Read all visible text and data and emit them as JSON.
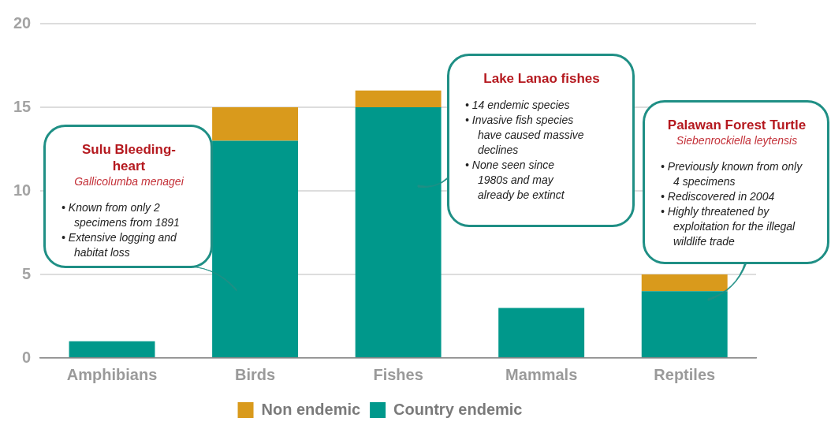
{
  "chart_data": {
    "type": "bar",
    "categories": [
      "Amphibians",
      "Birds",
      "Fishes",
      "Mammals",
      "Reptiles"
    ],
    "stacked": true,
    "series": [
      {
        "name": "Country endemic",
        "color": "#00988b",
        "values": [
          1,
          13,
          15,
          3,
          4
        ]
      },
      {
        "name": "Non endemic",
        "color": "#d99a1c",
        "values": [
          0,
          2,
          1,
          0,
          1
        ]
      }
    ],
    "ylim": [
      0,
      20
    ],
    "yticks": [
      0,
      5,
      10,
      15,
      20
    ],
    "grid": "y",
    "legend": "bottom",
    "annotations": [
      "Sulu Bleeding-heart\nGallicolumba menagei\n• Known from only 2 specimens from 1891\n• Extensive logging and habitat loss",
      "Lake Lanao fishes\n• 14 endemic species\n• Invasive fish species have caused massive declines\n• None seen since 1980s and may already be extinct",
      "Palawan Forest Turtle\nSiebenrockiella leytensis\n• Previously known from only 4 specimens\n• Rediscovered in 2004\n• Highly threatened by exploitation for the illegal wildlife trade"
    ]
  }
}
